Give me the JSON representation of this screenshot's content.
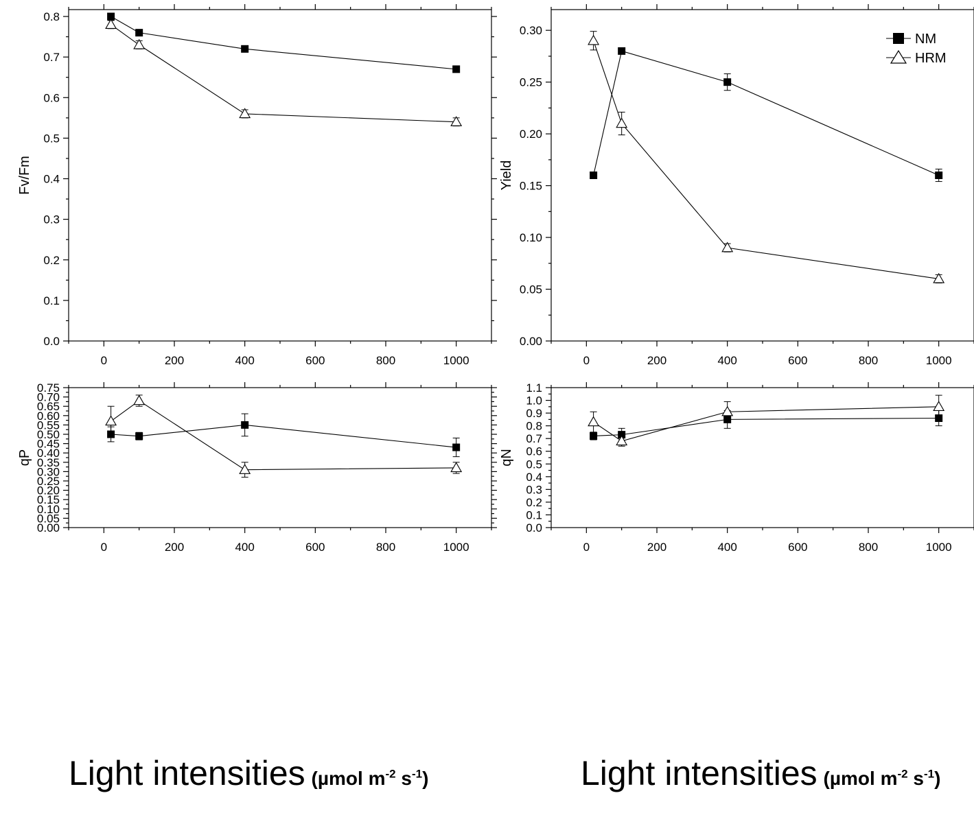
{
  "legend": {
    "nm": "NM",
    "hrm": "HRM"
  },
  "xtitle": {
    "main": "Light intensities",
    "unit_open": "(µmol m",
    "exp1": "-2",
    "unit_mid": " s",
    "exp2": "-1",
    "unit_close": ")"
  },
  "chart_data": [
    {
      "type": "line",
      "ylabel": "Fv/Fm",
      "xlim": [
        -100,
        1100
      ],
      "ylim": [
        0,
        0.8
      ],
      "xticks": [
        "0",
        "200",
        "400",
        "600",
        "800",
        "1000"
      ],
      "yticks": [
        "0.0",
        "0.1",
        "0.2",
        "0.3",
        "0.4",
        "0.5",
        "0.6",
        "0.7",
        "0.8"
      ],
      "x": [
        20,
        100,
        400,
        1000
      ],
      "series": [
        {
          "name": "NM",
          "marker": "square",
          "values": [
            0.8,
            0.76,
            0.72,
            0.67
          ],
          "errors": [
            0,
            0,
            0,
            0
          ]
        },
        {
          "name": "HRM",
          "marker": "triangle",
          "values": [
            0.78,
            0.73,
            0.56,
            0.54
          ],
          "errors": [
            0.01,
            0.01,
            0.01,
            0.01
          ]
        }
      ]
    },
    {
      "type": "line",
      "ylabel": "Yield",
      "xlim": [
        -100,
        1100
      ],
      "ylim": [
        0,
        0.32
      ],
      "xticks": [
        "0",
        "200",
        "400",
        "600",
        "800",
        "1000"
      ],
      "yticks": [
        "0.00",
        "0.05",
        "0.10",
        "0.15",
        "0.20",
        "0.25",
        "0.30"
      ],
      "legend": "top-right",
      "x": [
        20,
        100,
        400,
        1000
      ],
      "series": [
        {
          "name": "NM",
          "marker": "square",
          "values": [
            0.16,
            0.28,
            0.25,
            0.16
          ],
          "errors": [
            0,
            0,
            0.008,
            0.006
          ]
        },
        {
          "name": "HRM",
          "marker": "triangle",
          "values": [
            0.29,
            0.21,
            0.09,
            0.06
          ],
          "errors": [
            0.009,
            0.011,
            0.004,
            0.004
          ]
        }
      ]
    },
    {
      "type": "line",
      "ylabel": "qP",
      "xlim": [
        -100,
        1100
      ],
      "ylim": [
        0,
        0.75
      ],
      "xticks": [
        "0",
        "200",
        "400",
        "600",
        "800",
        "1000"
      ],
      "yticks": [
        "0.00",
        "0.05",
        "0.10",
        "0.15",
        "0.20",
        "0.25",
        "0.30",
        "0.35",
        "0.40",
        "0.45",
        "0.50",
        "0.55",
        "0.60",
        "0.65",
        "0.70",
        "0.75"
      ],
      "x": [
        20,
        100,
        400,
        1000
      ],
      "series": [
        {
          "name": "NM",
          "marker": "square",
          "values": [
            0.5,
            0.49,
            0.55,
            0.43
          ],
          "errors": [
            0.04,
            0.02,
            0.06,
            0.05
          ]
        },
        {
          "name": "HRM",
          "marker": "triangle",
          "values": [
            0.57,
            0.68,
            0.31,
            0.32
          ],
          "errors": [
            0.08,
            0.03,
            0.04,
            0.03
          ]
        }
      ]
    },
    {
      "type": "line",
      "ylabel": "qN",
      "xlim": [
        -100,
        1100
      ],
      "ylim": [
        0,
        1.1
      ],
      "xticks": [
        "0",
        "200",
        "400",
        "600",
        "800",
        "1000"
      ],
      "yticks": [
        "0.0",
        "0.1",
        "0.2",
        "0.3",
        "0.4",
        "0.5",
        "0.6",
        "0.7",
        "0.8",
        "0.9",
        "1.0",
        "1.1"
      ],
      "x": [
        20,
        100,
        400,
        1000
      ],
      "series": [
        {
          "name": "NM",
          "marker": "square",
          "values": [
            0.72,
            0.73,
            0.85,
            0.86
          ],
          "errors": [
            0.03,
            0.05,
            0.07,
            0.06
          ]
        },
        {
          "name": "HRM",
          "marker": "triangle",
          "values": [
            0.83,
            0.68,
            0.91,
            0.95
          ],
          "errors": [
            0.08,
            0.04,
            0.08,
            0.09
          ]
        }
      ]
    }
  ]
}
